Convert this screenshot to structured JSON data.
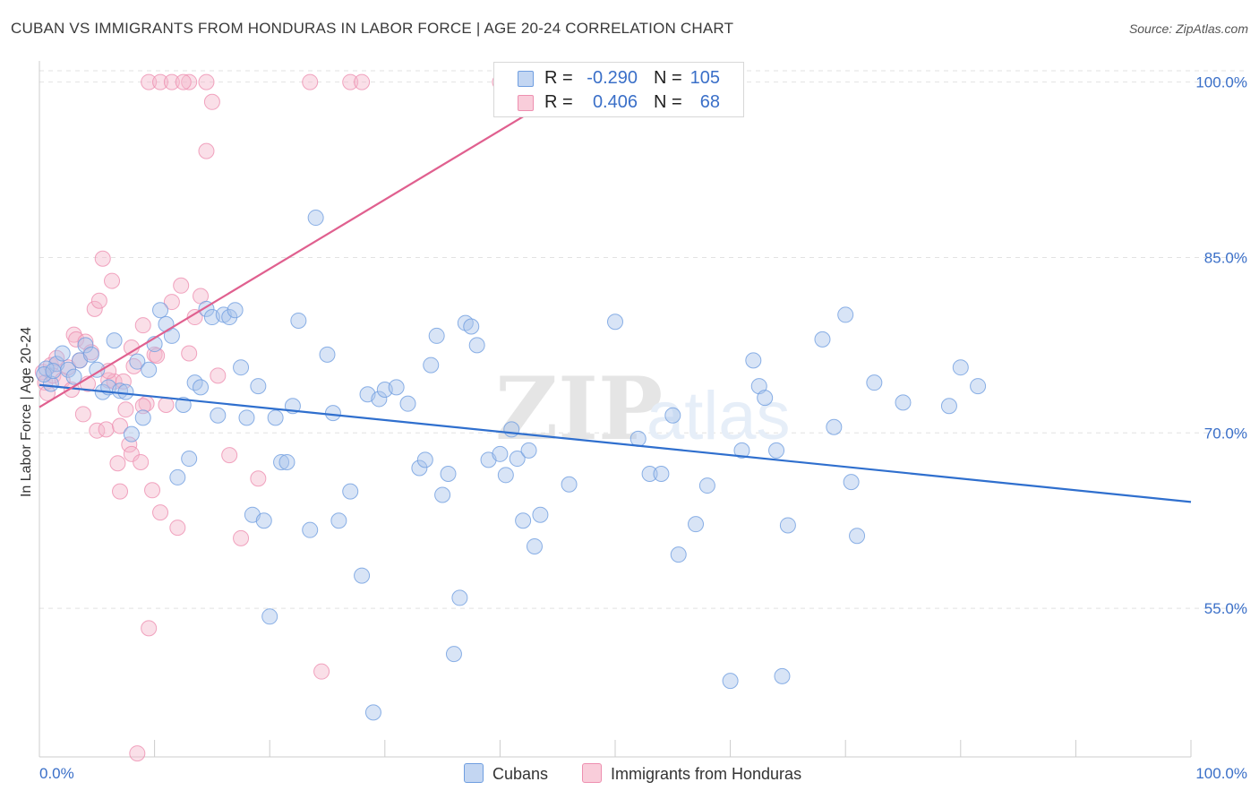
{
  "title": "CUBAN VS IMMIGRANTS FROM HONDURAS IN LABOR FORCE | AGE 20-24 CORRELATION CHART",
  "source": "Source: ZipAtlas.com",
  "watermark": {
    "zip": "ZIP",
    "atlas": "atlas"
  },
  "colors": {
    "blue_fill": "#a8c4ec",
    "blue_stroke": "#6f9ee0",
    "blue_line": "#2f6fce",
    "pink_fill": "#f5b8cb",
    "pink_stroke": "#ee8fb0",
    "pink_line": "#e0608f",
    "grid": "#e2e2e2",
    "axis_label": "#3a6fc8"
  },
  "legend": {
    "rows": [
      {
        "series": "Cubans",
        "r_label": "R =",
        "r_value": "-0.290",
        "n_label": "N =",
        "n_value": "105"
      },
      {
        "series": "Immigrants from Honduras",
        "r_label": "R =",
        "r_value": "0.406",
        "n_label": "N =",
        "n_value": "68"
      }
    ],
    "bottom": [
      "Cubans",
      "Immigrants from Honduras"
    ]
  },
  "chart_data": {
    "type": "scatter",
    "title": "CUBAN VS IMMIGRANTS FROM HONDURAS IN LABOR FORCE | AGE 20-24 CORRELATION CHART",
    "xlabel": "",
    "ylabel": "In Labor Force | Age 20-24",
    "xlim": [
      0,
      100
    ],
    "ylim": [
      42.3,
      101.5
    ],
    "x_tick_labels": [
      "0.0%",
      "100.0%"
    ],
    "y_ticks": [
      55,
      70,
      85,
      100
    ],
    "y_tick_labels": [
      "55.0%",
      "70.0%",
      "85.0%",
      "100.0%"
    ],
    "grid": true,
    "legend_position": "top-center",
    "series": [
      {
        "name": "Cubans",
        "color": "blue",
        "trend": {
          "x": [
            0,
            100
          ],
          "y": [
            74.1,
            64.1
          ]
        },
        "points": [
          [
            1.5,
            75.9
          ],
          [
            2.0,
            76.8
          ],
          [
            2.5,
            75.4
          ],
          [
            3.0,
            74.8
          ],
          [
            0.6,
            75.5
          ],
          [
            1.0,
            74.2
          ],
          [
            0.4,
            75.0
          ],
          [
            1.2,
            75.3
          ],
          [
            3.5,
            76.2
          ],
          [
            4.0,
            77.5
          ],
          [
            4.5,
            76.7
          ],
          [
            5.0,
            75.4
          ],
          [
            5.5,
            73.5
          ],
          [
            6.0,
            73.9
          ],
          [
            6.5,
            77.9
          ],
          [
            7.0,
            73.6
          ],
          [
            7.5,
            73.5
          ],
          [
            8.0,
            69.9
          ],
          [
            8.5,
            76.1
          ],
          [
            9.0,
            71.3
          ],
          [
            9.5,
            75.4
          ],
          [
            10.0,
            77.6
          ],
          [
            10.5,
            80.5
          ],
          [
            11.0,
            79.3
          ],
          [
            11.5,
            78.3
          ],
          [
            12.0,
            66.2
          ],
          [
            12.5,
            72.4
          ],
          [
            13.0,
            67.8
          ],
          [
            13.5,
            74.3
          ],
          [
            14.0,
            73.9
          ],
          [
            14.5,
            80.6
          ],
          [
            15.0,
            79.9
          ],
          [
            15.5,
            71.5
          ],
          [
            16.0,
            80.1
          ],
          [
            16.5,
            79.9
          ],
          [
            17.0,
            80.5
          ],
          [
            17.5,
            75.6
          ],
          [
            18.0,
            71.3
          ],
          [
            18.5,
            63.0
          ],
          [
            19.0,
            74.0
          ],
          [
            19.5,
            62.5
          ],
          [
            20.0,
            54.3
          ],
          [
            20.5,
            71.3
          ],
          [
            21.0,
            67.5
          ],
          [
            21.5,
            67.5
          ],
          [
            22.0,
            72.3
          ],
          [
            22.5,
            79.6
          ],
          [
            23.5,
            61.7
          ],
          [
            24.0,
            88.4
          ],
          [
            25.0,
            76.7
          ],
          [
            25.5,
            71.7
          ],
          [
            26.0,
            62.5
          ],
          [
            27.0,
            65.0
          ],
          [
            28.0,
            57.8
          ],
          [
            28.5,
            73.3
          ],
          [
            29.0,
            46.1
          ],
          [
            29.5,
            72.9
          ],
          [
            30.0,
            73.7
          ],
          [
            31.0,
            73.9
          ],
          [
            32.0,
            72.5
          ],
          [
            33.0,
            67.0
          ],
          [
            33.5,
            67.7
          ],
          [
            34.0,
            75.8
          ],
          [
            34.5,
            78.3
          ],
          [
            35.0,
            64.7
          ],
          [
            35.5,
            66.5
          ],
          [
            36.0,
            51.1
          ],
          [
            36.5,
            55.9
          ],
          [
            37.0,
            79.4
          ],
          [
            37.5,
            79.1
          ],
          [
            38.0,
            77.5
          ],
          [
            39.0,
            67.7
          ],
          [
            40.0,
            68.2
          ],
          [
            40.5,
            66.4
          ],
          [
            41.0,
            70.3
          ],
          [
            41.5,
            67.8
          ],
          [
            42.0,
            62.5
          ],
          [
            42.5,
            68.5
          ],
          [
            43.0,
            60.3
          ],
          [
            43.5,
            63.0
          ],
          [
            46.0,
            65.6
          ],
          [
            50.0,
            79.5
          ],
          [
            52.0,
            69.5
          ],
          [
            53.0,
            66.5
          ],
          [
            54.0,
            66.5
          ],
          [
            55.0,
            71.5
          ],
          [
            55.5,
            59.6
          ],
          [
            57.0,
            62.2
          ],
          [
            58.0,
            65.5
          ],
          [
            61.0,
            68.5
          ],
          [
            62.0,
            76.2
          ],
          [
            62.5,
            74.0
          ],
          [
            63.0,
            73.0
          ],
          [
            64.0,
            68.5
          ],
          [
            65.0,
            62.1
          ],
          [
            68.0,
            78.0
          ],
          [
            69.0,
            70.5
          ],
          [
            70.0,
            80.1
          ],
          [
            70.5,
            65.8
          ],
          [
            71.0,
            61.2
          ],
          [
            72.5,
            74.3
          ],
          [
            75.0,
            72.6
          ],
          [
            79.0,
            72.3
          ],
          [
            80.0,
            75.6
          ],
          [
            81.5,
            74.0
          ],
          [
            60.0,
            48.8
          ],
          [
            64.5,
            49.2
          ]
        ]
      },
      {
        "name": "Immigrants from Honduras",
        "color": "pink",
        "trend": {
          "x": [
            0,
            47
          ],
          "y": [
            72.2,
            100.0
          ]
        },
        "points": [
          [
            0.3,
            75.2
          ],
          [
            0.5,
            74.3
          ],
          [
            0.7,
            73.4
          ],
          [
            1.0,
            75.8
          ],
          [
            1.2,
            74.9
          ],
          [
            1.5,
            76.4
          ],
          [
            2.0,
            74.5
          ],
          [
            2.5,
            75.6
          ],
          [
            2.8,
            73.7
          ],
          [
            3.0,
            78.4
          ],
          [
            3.2,
            78.0
          ],
          [
            3.5,
            76.2
          ],
          [
            3.8,
            71.6
          ],
          [
            4.0,
            77.8
          ],
          [
            4.2,
            74.2
          ],
          [
            4.5,
            76.9
          ],
          [
            4.8,
            80.6
          ],
          [
            5.0,
            70.2
          ],
          [
            5.2,
            81.3
          ],
          [
            5.5,
            84.9
          ],
          [
            5.8,
            70.3
          ],
          [
            6.0,
            74.5
          ],
          [
            6.3,
            83.0
          ],
          [
            6.5,
            74.4
          ],
          [
            6.8,
            67.4
          ],
          [
            7.0,
            65.0
          ],
          [
            7.3,
            74.4
          ],
          [
            7.5,
            72.0
          ],
          [
            7.8,
            69.0
          ],
          [
            8.0,
            68.2
          ],
          [
            8.2,
            75.7
          ],
          [
            8.5,
            42.6
          ],
          [
            8.8,
            67.5
          ],
          [
            9.0,
            79.2
          ],
          [
            9.3,
            72.5
          ],
          [
            9.5,
            53.3
          ],
          [
            9.8,
            65.1
          ],
          [
            10.0,
            76.7
          ],
          [
            10.2,
            76.6
          ],
          [
            10.5,
            63.2
          ],
          [
            11.0,
            72.4
          ],
          [
            11.5,
            81.2
          ],
          [
            12.0,
            61.9
          ],
          [
            12.3,
            82.6
          ],
          [
            13.0,
            76.8
          ],
          [
            13.5,
            79.9
          ],
          [
            14.0,
            81.7
          ],
          [
            14.5,
            94.1
          ],
          [
            15.0,
            98.3
          ],
          [
            15.5,
            74.9
          ],
          [
            16.5,
            68.1
          ],
          [
            17.5,
            61.0
          ],
          [
            19.0,
            66.1
          ],
          [
            24.5,
            49.6
          ],
          [
            9.5,
            100.0
          ],
          [
            10.5,
            100.0
          ],
          [
            11.5,
            100.0
          ],
          [
            13.0,
            100.0
          ],
          [
            14.5,
            100.0
          ],
          [
            23.5,
            100.0
          ],
          [
            27.0,
            100.0
          ],
          [
            28.0,
            100.0
          ],
          [
            40.0,
            100.0
          ],
          [
            12.5,
            100.0
          ],
          [
            9.0,
            72.3
          ],
          [
            7.0,
            70.6
          ],
          [
            6.0,
            75.3
          ],
          [
            8.0,
            77.3
          ]
        ]
      }
    ]
  }
}
